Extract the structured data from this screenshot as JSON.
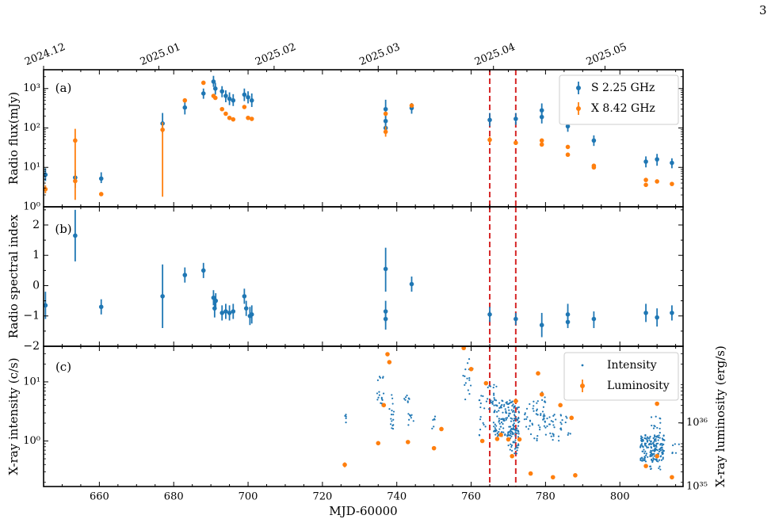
{
  "page_number": "3",
  "chart_data": [
    {
      "type": "scatter",
      "panel_label": "(a)",
      "ylabel": "Radio flux(mJy)",
      "yscale": "log",
      "ylim": [
        1,
        3000
      ],
      "xlim": [
        645,
        817
      ],
      "top_axis_dates": [
        {
          "label": "2024.12",
          "x": 645
        },
        {
          "label": "2025.01",
          "x": 676
        },
        {
          "label": "2025.02",
          "x": 707
        },
        {
          "label": "2025.03",
          "x": 735
        },
        {
          "label": "2025.04",
          "x": 766
        },
        {
          "label": "2025.05",
          "x": 796
        }
      ],
      "y_ticks": [
        {
          "v": 1,
          "label": "10⁰"
        },
        {
          "v": 10,
          "label": "10¹"
        },
        {
          "v": 100,
          "label": "10²"
        },
        {
          "v": 1000,
          "label": "10³"
        }
      ],
      "vlines": [
        765,
        772
      ],
      "legend": {
        "placement": "top-right",
        "entries": [
          "S 2.25 GHz",
          "X 8.42 GHz"
        ]
      },
      "series": [
        {
          "name": "S 2.25 GHz",
          "color": "#1f77b4",
          "points": [
            {
              "x": 645.5,
              "y": 6.5,
              "lo": 4.5,
              "hi": 9.5
            },
            {
              "x": 653.5,
              "y": 5.5,
              "lo": 3,
              "hi": 8.5
            },
            {
              "x": 660.5,
              "y": 5.2,
              "lo": 4,
              "hi": 7.5
            },
            {
              "x": 677,
              "y": 130,
              "lo": 75,
              "hi": 240
            },
            {
              "x": 683,
              "y": 330,
              "lo": 220,
              "hi": 480
            },
            {
              "x": 688,
              "y": 750,
              "lo": 550,
              "hi": 1000
            },
            {
              "x": 690.7,
              "y": 1500,
              "lo": 1100,
              "hi": 2100
            },
            {
              "x": 691.2,
              "y": 1000,
              "lo": 700,
              "hi": 1400
            },
            {
              "x": 693,
              "y": 850,
              "lo": 600,
              "hi": 1150
            },
            {
              "x": 694,
              "y": 650,
              "lo": 450,
              "hi": 900
            },
            {
              "x": 695,
              "y": 550,
              "lo": 380,
              "hi": 800
            },
            {
              "x": 696,
              "y": 500,
              "lo": 360,
              "hi": 720
            },
            {
              "x": 699,
              "y": 700,
              "lo": 480,
              "hi": 1000
            },
            {
              "x": 700,
              "y": 600,
              "lo": 420,
              "hi": 850
            },
            {
              "x": 701,
              "y": 500,
              "lo": 340,
              "hi": 750
            },
            {
              "x": 737,
              "y": 300,
              "lo": 180,
              "hi": 520
            },
            {
              "x": 737,
              "y": 150,
              "lo": 100,
              "hi": 230
            },
            {
              "x": 737,
              "y": 100,
              "lo": 70,
              "hi": 150
            },
            {
              "x": 744,
              "y": 320,
              "lo": 230,
              "hi": 430
            },
            {
              "x": 765,
              "y": 160,
              "lo": 110,
              "hi": 240
            },
            {
              "x": 772,
              "y": 170,
              "lo": 120,
              "hi": 240
            },
            {
              "x": 779,
              "y": 280,
              "lo": 190,
              "hi": 420
            },
            {
              "x": 779,
              "y": 190,
              "lo": 130,
              "hi": 280
            },
            {
              "x": 786,
              "y": 110,
              "lo": 80,
              "hi": 150
            },
            {
              "x": 793,
              "y": 48,
              "lo": 35,
              "hi": 65
            },
            {
              "x": 807,
              "y": 14,
              "lo": 10,
              "hi": 19
            },
            {
              "x": 810,
              "y": 16,
              "lo": 11,
              "hi": 22
            },
            {
              "x": 814,
              "y": 13,
              "lo": 9.5,
              "hi": 17
            }
          ]
        },
        {
          "name": "X 8.42 GHz",
          "color": "#ff7f0e",
          "points": [
            {
              "x": 645.5,
              "y": 2.8,
              "lo": 2.2,
              "hi": 3.5
            },
            {
              "x": 653.5,
              "y": 48,
              "lo": 5,
              "hi": 95
            },
            {
              "x": 653.5,
              "y": 4.5,
              "lo": 1.5,
              "hi": 7
            },
            {
              "x": 660.5,
              "y": 2.1
            },
            {
              "x": 677,
              "y": 90,
              "lo": 1.8,
              "hi": 140
            },
            {
              "x": 683,
              "y": 500
            },
            {
              "x": 688,
              "y": 1400
            },
            {
              "x": 690.7,
              "y": 650
            },
            {
              "x": 691.2,
              "y": 580
            },
            {
              "x": 693,
              "y": 300
            },
            {
              "x": 694,
              "y": 230
            },
            {
              "x": 695,
              "y": 180
            },
            {
              "x": 696,
              "y": 165
            },
            {
              "x": 699,
              "y": 340
            },
            {
              "x": 700,
              "y": 180
            },
            {
              "x": 701,
              "y": 170
            },
            {
              "x": 737,
              "y": 230
            },
            {
              "x": 737,
              "y": 80,
              "lo": 60,
              "hi": 110
            },
            {
              "x": 744,
              "y": 370
            },
            {
              "x": 765,
              "y": 50,
              "lo": 40,
              "hi": 60
            },
            {
              "x": 772,
              "y": 42
            },
            {
              "x": 779,
              "y": 48
            },
            {
              "x": 779,
              "y": 38
            },
            {
              "x": 786,
              "y": 33
            },
            {
              "x": 786,
              "y": 21
            },
            {
              "x": 793,
              "y": 11
            },
            {
              "x": 793,
              "y": 10
            },
            {
              "x": 807,
              "y": 4.8
            },
            {
              "x": 807,
              "y": 3.6
            },
            {
              "x": 810,
              "y": 4.4
            },
            {
              "x": 814,
              "y": 3.8
            }
          ]
        }
      ]
    },
    {
      "type": "scatter",
      "panel_label": "(b)",
      "ylabel": "Radio spectral index",
      "ylim": [
        -2,
        2.6
      ],
      "xlim": [
        645,
        817
      ],
      "y_ticks": [
        {
          "v": -2,
          "label": "−2"
        },
        {
          "v": -1,
          "label": "−1"
        },
        {
          "v": 0,
          "label": "0"
        },
        {
          "v": 1,
          "label": "1"
        },
        {
          "v": 2,
          "label": "2"
        }
      ],
      "vlines": [
        765,
        772
      ],
      "series": [
        {
          "name": "",
          "color": "#1f77b4",
          "points": [
            {
              "x": 645.5,
              "y": -0.65,
              "lo": -1.1,
              "hi": -0.2
            },
            {
              "x": 653.5,
              "y": 1.65,
              "lo": 0.8,
              "hi": 2.5
            },
            {
              "x": 660.5,
              "y": -0.7,
              "lo": -0.95,
              "hi": -0.45
            },
            {
              "x": 677,
              "y": -0.35,
              "lo": -1.4,
              "hi": 0.7
            },
            {
              "x": 683,
              "y": 0.35,
              "lo": 0.1,
              "hi": 0.6
            },
            {
              "x": 688,
              "y": 0.5,
              "lo": 0.25,
              "hi": 0.75
            },
            {
              "x": 690.7,
              "y": -0.4,
              "lo": -0.65,
              "hi": -0.15
            },
            {
              "x": 691,
              "y": -0.75,
              "lo": -1.05,
              "hi": -0.45
            },
            {
              "x": 691.3,
              "y": -0.5,
              "lo": -0.75,
              "hi": -0.25
            },
            {
              "x": 693,
              "y": -0.9,
              "lo": -1.15,
              "hi": -0.65
            },
            {
              "x": 694,
              "y": -0.85,
              "lo": -1.1,
              "hi": -0.6
            },
            {
              "x": 695,
              "y": -0.9,
              "lo": -1.15,
              "hi": -0.65
            },
            {
              "x": 696,
              "y": -0.85,
              "lo": -1.1,
              "hi": -0.6
            },
            {
              "x": 699,
              "y": -0.35,
              "lo": -0.6,
              "hi": -0.1
            },
            {
              "x": 699.5,
              "y": -0.75,
              "lo": -1.0,
              "hi": -0.5
            },
            {
              "x": 700.5,
              "y": -1.0,
              "lo": -1.3,
              "hi": -0.7
            },
            {
              "x": 701,
              "y": -0.95,
              "lo": -1.25,
              "hi": -0.65
            },
            {
              "x": 737,
              "y": 0.55,
              "lo": -0.2,
              "hi": 1.25
            },
            {
              "x": 737,
              "y": -0.85,
              "lo": -1.2,
              "hi": -0.5
            },
            {
              "x": 737,
              "y": -1.1,
              "lo": -1.45,
              "hi": -0.8
            },
            {
              "x": 744,
              "y": 0.05,
              "lo": -0.2,
              "hi": 0.3
            },
            {
              "x": 765,
              "y": -0.95,
              "lo": -1.2,
              "hi": -0.7
            },
            {
              "x": 772,
              "y": -1.1,
              "lo": -1.3,
              "hi": -0.9
            },
            {
              "x": 779,
              "y": -1.3,
              "lo": -1.7,
              "hi": -0.9
            },
            {
              "x": 786,
              "y": -0.95,
              "lo": -1.3,
              "hi": -0.6
            },
            {
              "x": 786,
              "y": -1.2,
              "lo": -1.4,
              "hi": -1.0
            },
            {
              "x": 793,
              "y": -1.1,
              "lo": -1.4,
              "hi": -0.85
            },
            {
              "x": 807,
              "y": -0.9,
              "lo": -1.2,
              "hi": -0.6
            },
            {
              "x": 810,
              "y": -1.05,
              "lo": -1.35,
              "hi": -0.75
            },
            {
              "x": 814,
              "y": -0.9,
              "lo": -1.15,
              "hi": -0.65
            }
          ]
        }
      ]
    },
    {
      "type": "scatter",
      "panel_label": "(c)",
      "ylabel": "X-ray intensity (c/s)",
      "ylabel_right": "X-ray luminosity (erg/s)",
      "xlabel": "MJD-60000",
      "yscale": "log",
      "ylim": [
        0.17,
        40
      ],
      "xlim": [
        645,
        817
      ],
      "x_ticks": [
        660,
        680,
        700,
        720,
        740,
        760,
        780,
        800
      ],
      "y_ticks": [
        {
          "v": 1,
          "label": "10⁰"
        },
        {
          "v": 10,
          "label": "10¹"
        }
      ],
      "y_ticks_right": [
        {
          "v": 1e+35,
          "label": "10³⁵"
        },
        {
          "v": 1e+36,
          "label": "10³⁶"
        }
      ],
      "ylim_right": [
        1e+35,
        1.6e+37
      ],
      "vlines": [
        765,
        772
      ],
      "legend": {
        "placement": "top-right",
        "entries": [
          "Intensity",
          "Luminosity"
        ]
      },
      "luminosity": {
        "name": "Luminosity",
        "color": "#ff7f0e",
        "points": [
          {
            "x": 726,
            "y": 2.2e+35,
            "lo": 2e+35,
            "hi": 2.4e+35
          },
          {
            "x": 735,
            "y": 4.8e+35
          },
          {
            "x": 736.5,
            "y": 1.9e+36
          },
          {
            "x": 737.5,
            "y": 1.2e+37
          },
          {
            "x": 738,
            "y": 9e+36
          },
          {
            "x": 743,
            "y": 5e+35
          },
          {
            "x": 750,
            "y": 4e+35
          },
          {
            "x": 752,
            "y": 8e+35
          },
          {
            "x": 758,
            "y": 1.5e+37
          },
          {
            "x": 760,
            "y": 7e+36
          },
          {
            "x": 763,
            "y": 5.2e+35
          },
          {
            "x": 764,
            "y": 4.2e+36
          },
          {
            "x": 767,
            "y": 5.6e+35
          },
          {
            "x": 768,
            "y": 6.5e+35
          },
          {
            "x": 770,
            "y": 5.5e+35
          },
          {
            "x": 771,
            "y": 3e+35
          },
          {
            "x": 772,
            "y": 2.2e+36
          },
          {
            "x": 773,
            "y": 5.5e+35
          },
          {
            "x": 776,
            "y": 1.6e+35
          },
          {
            "x": 778,
            "y": 6e+36
          },
          {
            "x": 779,
            "y": 2.8e+36
          },
          {
            "x": 782,
            "y": 1.4e+35
          },
          {
            "x": 784,
            "y": 1.9e+36
          },
          {
            "x": 787,
            "y": 1.2e+36
          },
          {
            "x": 788,
            "y": 1.5e+35
          },
          {
            "x": 807,
            "y": 2.1e+35
          },
          {
            "x": 810,
            "y": 3e+35
          },
          {
            "x": 810,
            "y": 2e+36
          },
          {
            "x": 814,
            "y": 1.4e+35
          }
        ]
      },
      "intensity_clusters": [
        {
          "x0": 726,
          "x1": 726.5,
          "ylo": 1.8,
          "yhi": 2.8,
          "n": 5
        },
        {
          "x0": 734.5,
          "x1": 736.5,
          "ylo": 3.0,
          "yhi": 15.0,
          "n": 18
        },
        {
          "x0": 738,
          "x1": 739.5,
          "ylo": 1.6,
          "yhi": 6.5,
          "n": 16
        },
        {
          "x0": 742,
          "x1": 743.5,
          "ylo": 4.0,
          "yhi": 6.0,
          "n": 8
        },
        {
          "x0": 743,
          "x1": 744.5,
          "ylo": 1.6,
          "yhi": 3.0,
          "n": 8
        },
        {
          "x0": 749.5,
          "x1": 750.5,
          "ylo": 1.3,
          "yhi": 2.6,
          "n": 6
        },
        {
          "x0": 757.5,
          "x1": 760.5,
          "ylo": 5.0,
          "yhi": 28.0,
          "n": 16
        },
        {
          "x0": 762,
          "x1": 764,
          "ylo": 1.0,
          "yhi": 6.0,
          "n": 16
        },
        {
          "x0": 764,
          "x1": 767,
          "ylo": 3.0,
          "yhi": 9.0,
          "n": 22
        },
        {
          "x0": 766,
          "x1": 773,
          "ylo": 1.2,
          "yhi": 5.0,
          "n": 140
        },
        {
          "x0": 770,
          "x1": 773,
          "ylo": 0.6,
          "yhi": 1.8,
          "n": 40
        },
        {
          "x0": 774,
          "x1": 778,
          "ylo": 1.0,
          "yhi": 5.0,
          "n": 30
        },
        {
          "x0": 778,
          "x1": 780,
          "ylo": 1.5,
          "yhi": 7.0,
          "n": 22
        },
        {
          "x0": 780,
          "x1": 784,
          "ylo": 1.0,
          "yhi": 3.0,
          "n": 22
        },
        {
          "x0": 784,
          "x1": 787,
          "ylo": 1.2,
          "yhi": 3.0,
          "n": 14
        },
        {
          "x0": 805.5,
          "x1": 812,
          "ylo": 0.45,
          "yhi": 1.3,
          "n": 170
        },
        {
          "x0": 808,
          "x1": 811,
          "ylo": 1.3,
          "yhi": 2.8,
          "n": 12
        },
        {
          "x0": 808,
          "x1": 811,
          "ylo": 0.3,
          "yhi": 0.45,
          "n": 8
        },
        {
          "x0": 814,
          "x1": 816,
          "ylo": 0.6,
          "yhi": 1.0,
          "n": 6
        }
      ],
      "intensity_color": "#1f77b4"
    }
  ]
}
